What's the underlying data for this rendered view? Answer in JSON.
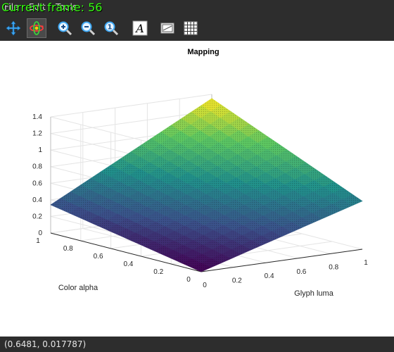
{
  "window": {
    "menu": [
      "File",
      "Edit",
      "Tools"
    ],
    "overlay_text": "Current frame: 56"
  },
  "toolbar": {
    "buttons": [
      {
        "name": "pan-button",
        "icon": "move-arrows-icon"
      },
      {
        "name": "rotate-3d-button",
        "icon": "rotate-3d-icon",
        "active": true
      },
      {
        "name": "zoom-in-button",
        "icon": "zoom-in-icon"
      },
      {
        "name": "zoom-out-button",
        "icon": "zoom-out-icon"
      },
      {
        "name": "zoom-reset-button",
        "icon": "zoom-reset-icon",
        "label": "1"
      },
      {
        "name": "annotate-button",
        "icon": "text-a-icon",
        "label": "A"
      },
      {
        "name": "legend-button",
        "icon": "legend-icon"
      },
      {
        "name": "grid-button",
        "icon": "grid-icon"
      }
    ]
  },
  "status": {
    "coords": "(0.6481, 0.017787)"
  },
  "chart_data": {
    "type": "surface",
    "title": "Mapping",
    "xlabel": "Glyph luma",
    "ylabel": "Color alpha",
    "zlabel": "",
    "xlim": [
      0,
      1
    ],
    "ylim": [
      0,
      1
    ],
    "zlim": [
      0,
      1.4
    ],
    "xticks": [
      "0",
      "0.2",
      "0.4",
      "0.6",
      "0.8",
      "1"
    ],
    "yticks": [
      "0",
      "0.2",
      "0.4",
      "0.6",
      "0.8",
      "1"
    ],
    "zticks": [
      "0",
      "0.2",
      "0.4",
      "0.6",
      "0.8",
      "1",
      "1.2",
      "1.4"
    ],
    "colormap": [
      "#440154",
      "#3b528b",
      "#21918c",
      "#5ec962",
      "#fde725"
    ],
    "grid": true,
    "z_corners": {
      "x0y0": 0.0,
      "x1y0": 0.58,
      "x0y1": 0.34,
      "x1y1": 1.35
    },
    "z_samples": [
      {
        "x": 0.0,
        "y": 0.0,
        "z": 0.0
      },
      {
        "x": 1.0,
        "y": 0.0,
        "z": 0.58
      },
      {
        "x": 0.0,
        "y": 1.0,
        "z": 0.34
      },
      {
        "x": 1.0,
        "y": 1.0,
        "z": 1.35
      },
      {
        "x": 0.5,
        "y": 0.5,
        "z": 0.95
      }
    ]
  }
}
